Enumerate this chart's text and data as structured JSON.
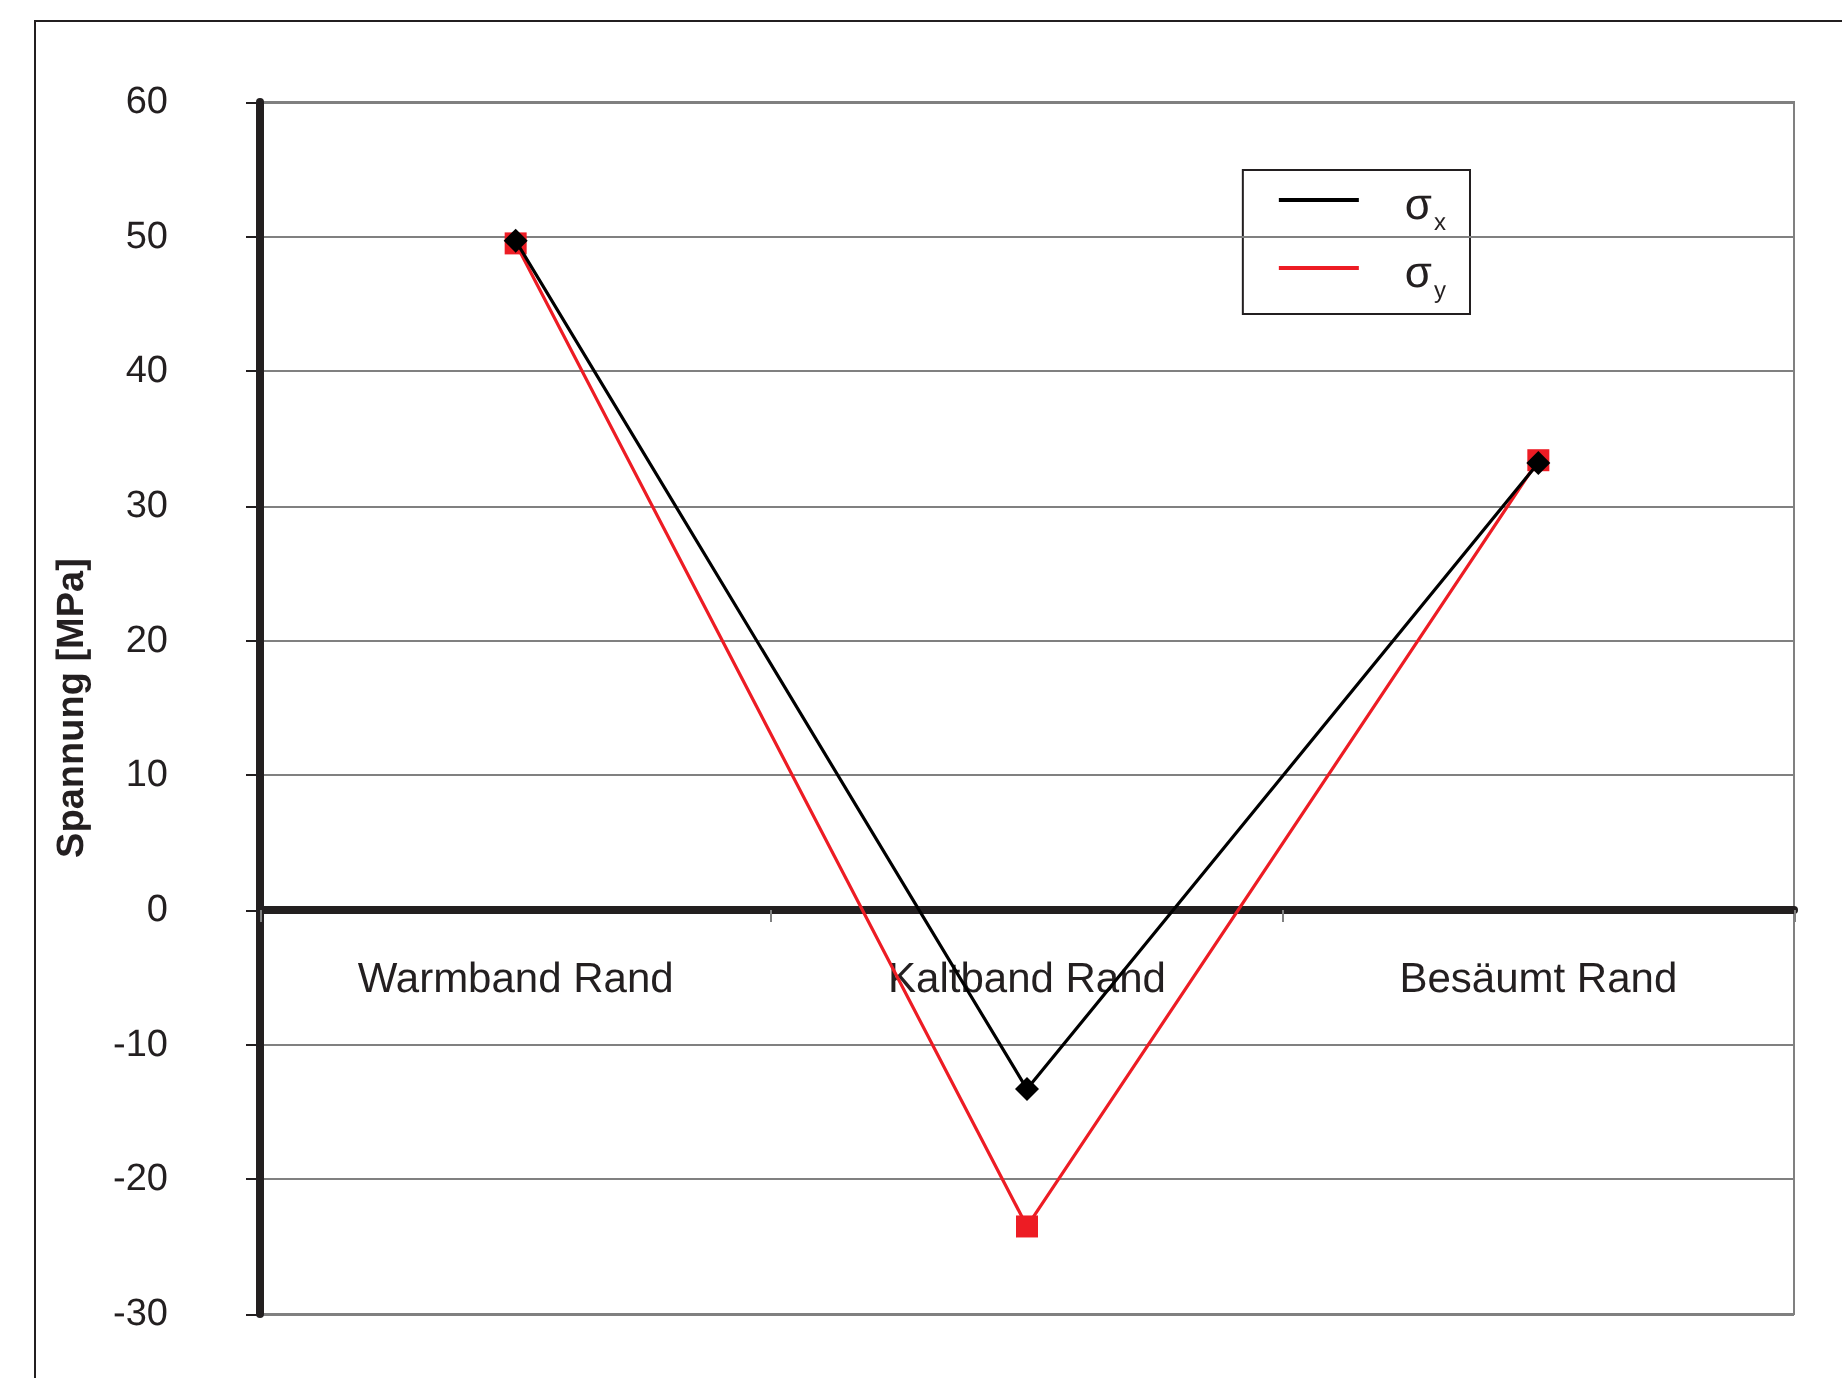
{
  "chart_data": {
    "type": "line",
    "ylabel": "Spannung [MPa]",
    "categories": [
      "Warmband Rand",
      "Kaltband Rand",
      "Besäumt Rand"
    ],
    "series": [
      {
        "name": "σ$_{x}$",
        "color": "#000000",
        "marker": "diamond",
        "values": [
          49.7,
          -13.3,
          33.2
        ]
      },
      {
        "name": "σ$_{y}$",
        "color": "#ed1c24",
        "marker": "square",
        "values": [
          49.5,
          -23.5,
          33.4
        ]
      }
    ],
    "ylim": [
      -30,
      60
    ],
    "yticks": [
      -30,
      -20,
      -10,
      0,
      10,
      20,
      30,
      40,
      50,
      60
    ],
    "grid": "y",
    "legend": "top right",
    "line_style": "solid"
  }
}
